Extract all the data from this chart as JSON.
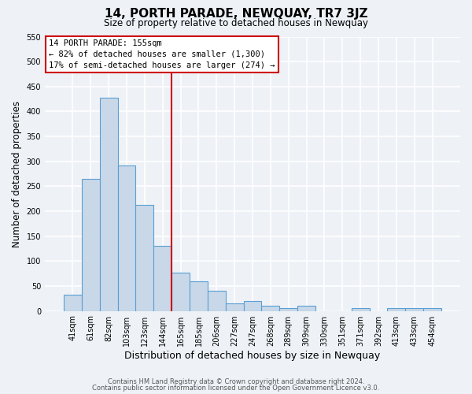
{
  "title": "14, PORTH PARADE, NEWQUAY, TR7 3JZ",
  "subtitle": "Size of property relative to detached houses in Newquay",
  "xlabel": "Distribution of detached houses by size in Newquay",
  "ylabel": "Number of detached properties",
  "bar_labels": [
    "41sqm",
    "61sqm",
    "82sqm",
    "103sqm",
    "123sqm",
    "144sqm",
    "165sqm",
    "185sqm",
    "206sqm",
    "227sqm",
    "247sqm",
    "268sqm",
    "289sqm",
    "309sqm",
    "330sqm",
    "351sqm",
    "371sqm",
    "392sqm",
    "413sqm",
    "433sqm",
    "454sqm"
  ],
  "bar_values": [
    32,
    265,
    428,
    291,
    213,
    130,
    76,
    59,
    40,
    15,
    20,
    10,
    5,
    10,
    0,
    0,
    5,
    0,
    5,
    5,
    5
  ],
  "bar_color": "#c8d8e8",
  "bar_edge_color": "#5a9fd4",
  "vline_x": 6.0,
  "vline_color": "#cc0000",
  "ylim": [
    0,
    550
  ],
  "yticks": [
    0,
    50,
    100,
    150,
    200,
    250,
    300,
    350,
    400,
    450,
    500,
    550
  ],
  "annotation_title": "14 PORTH PARADE: 155sqm",
  "annotation_line1": "← 82% of detached houses are smaller (1,300)",
  "annotation_line2": "17% of semi-detached houses are larger (274) →",
  "annotation_box_color": "#cc0000",
  "footer_line1": "Contains HM Land Registry data © Crown copyright and database right 2024.",
  "footer_line2": "Contains public sector information licensed under the Open Government Licence v3.0.",
  "bg_color": "#eef2f7",
  "grid_color": "#d8e0ea"
}
